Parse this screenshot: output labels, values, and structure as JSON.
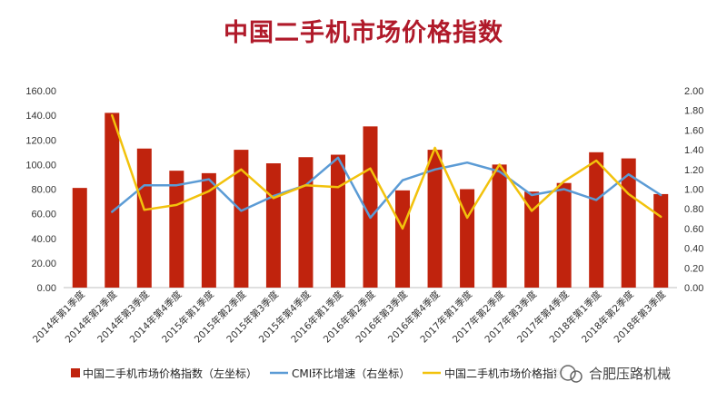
{
  "chart_data": {
    "type": "bar",
    "title": "中国二手机市场价格指数",
    "categories": [
      "2014年第1季度",
      "2014年第2季度",
      "2014年第3季度",
      "2014年第4季度",
      "2015年第1季度",
      "2015年第2季度",
      "2015年第3季度",
      "2015年第4季度",
      "2016年第1季度",
      "2016年第2季度",
      "2016年第3季度",
      "2016年第4季度",
      "2017年第1季度",
      "2017年第2季度",
      "2017年第3季度",
      "2017年第4季度",
      "2018年第1季度",
      "2018年第2季度",
      "2018年第3季度"
    ],
    "left_axis": {
      "ylim": [
        0,
        160
      ],
      "ticks": [
        "0.00",
        "20.00",
        "40.00",
        "60.00",
        "80.00",
        "100.00",
        "120.00",
        "140.00",
        "160.00"
      ]
    },
    "right_axis": {
      "ylim": [
        0,
        2.0
      ],
      "ticks": [
        "0.00",
        "0.20",
        "0.40",
        "0.60",
        "0.80",
        "1.00",
        "1.20",
        "1.40",
        "1.60",
        "1.80",
        "2.00"
      ]
    },
    "series": [
      {
        "name": "中国二手机市场价格指数（左坐标）",
        "kind": "bar",
        "axis": "left",
        "color": "#c0230d",
        "values": [
          81,
          142,
          113,
          95,
          93,
          112,
          101,
          106,
          108,
          131,
          79,
          112,
          80,
          100,
          78,
          85,
          110,
          105,
          76
        ]
      },
      {
        "name": "CMI环比增速（右坐标）",
        "kind": "line",
        "axis": "right",
        "color": "#5b9bd5",
        "values": [
          null,
          0.77,
          1.04,
          1.04,
          1.1,
          0.78,
          0.93,
          1.04,
          1.32,
          0.71,
          1.09,
          1.2,
          1.27,
          1.18,
          0.94,
          1.0,
          0.89,
          1.15,
          0.94
        ]
      },
      {
        "name": "中国二手机市场价格指数",
        "kind": "line",
        "axis": "right",
        "color": "#f2c20c",
        "values": [
          null,
          1.75,
          0.79,
          0.84,
          0.98,
          1.2,
          0.91,
          1.04,
          1.02,
          1.21,
          0.6,
          1.42,
          0.71,
          1.25,
          0.78,
          1.08,
          1.29,
          0.95,
          0.72
        ]
      }
    ],
    "legend": "bottom",
    "grid": false
  },
  "watermark": "合肥压路机械"
}
